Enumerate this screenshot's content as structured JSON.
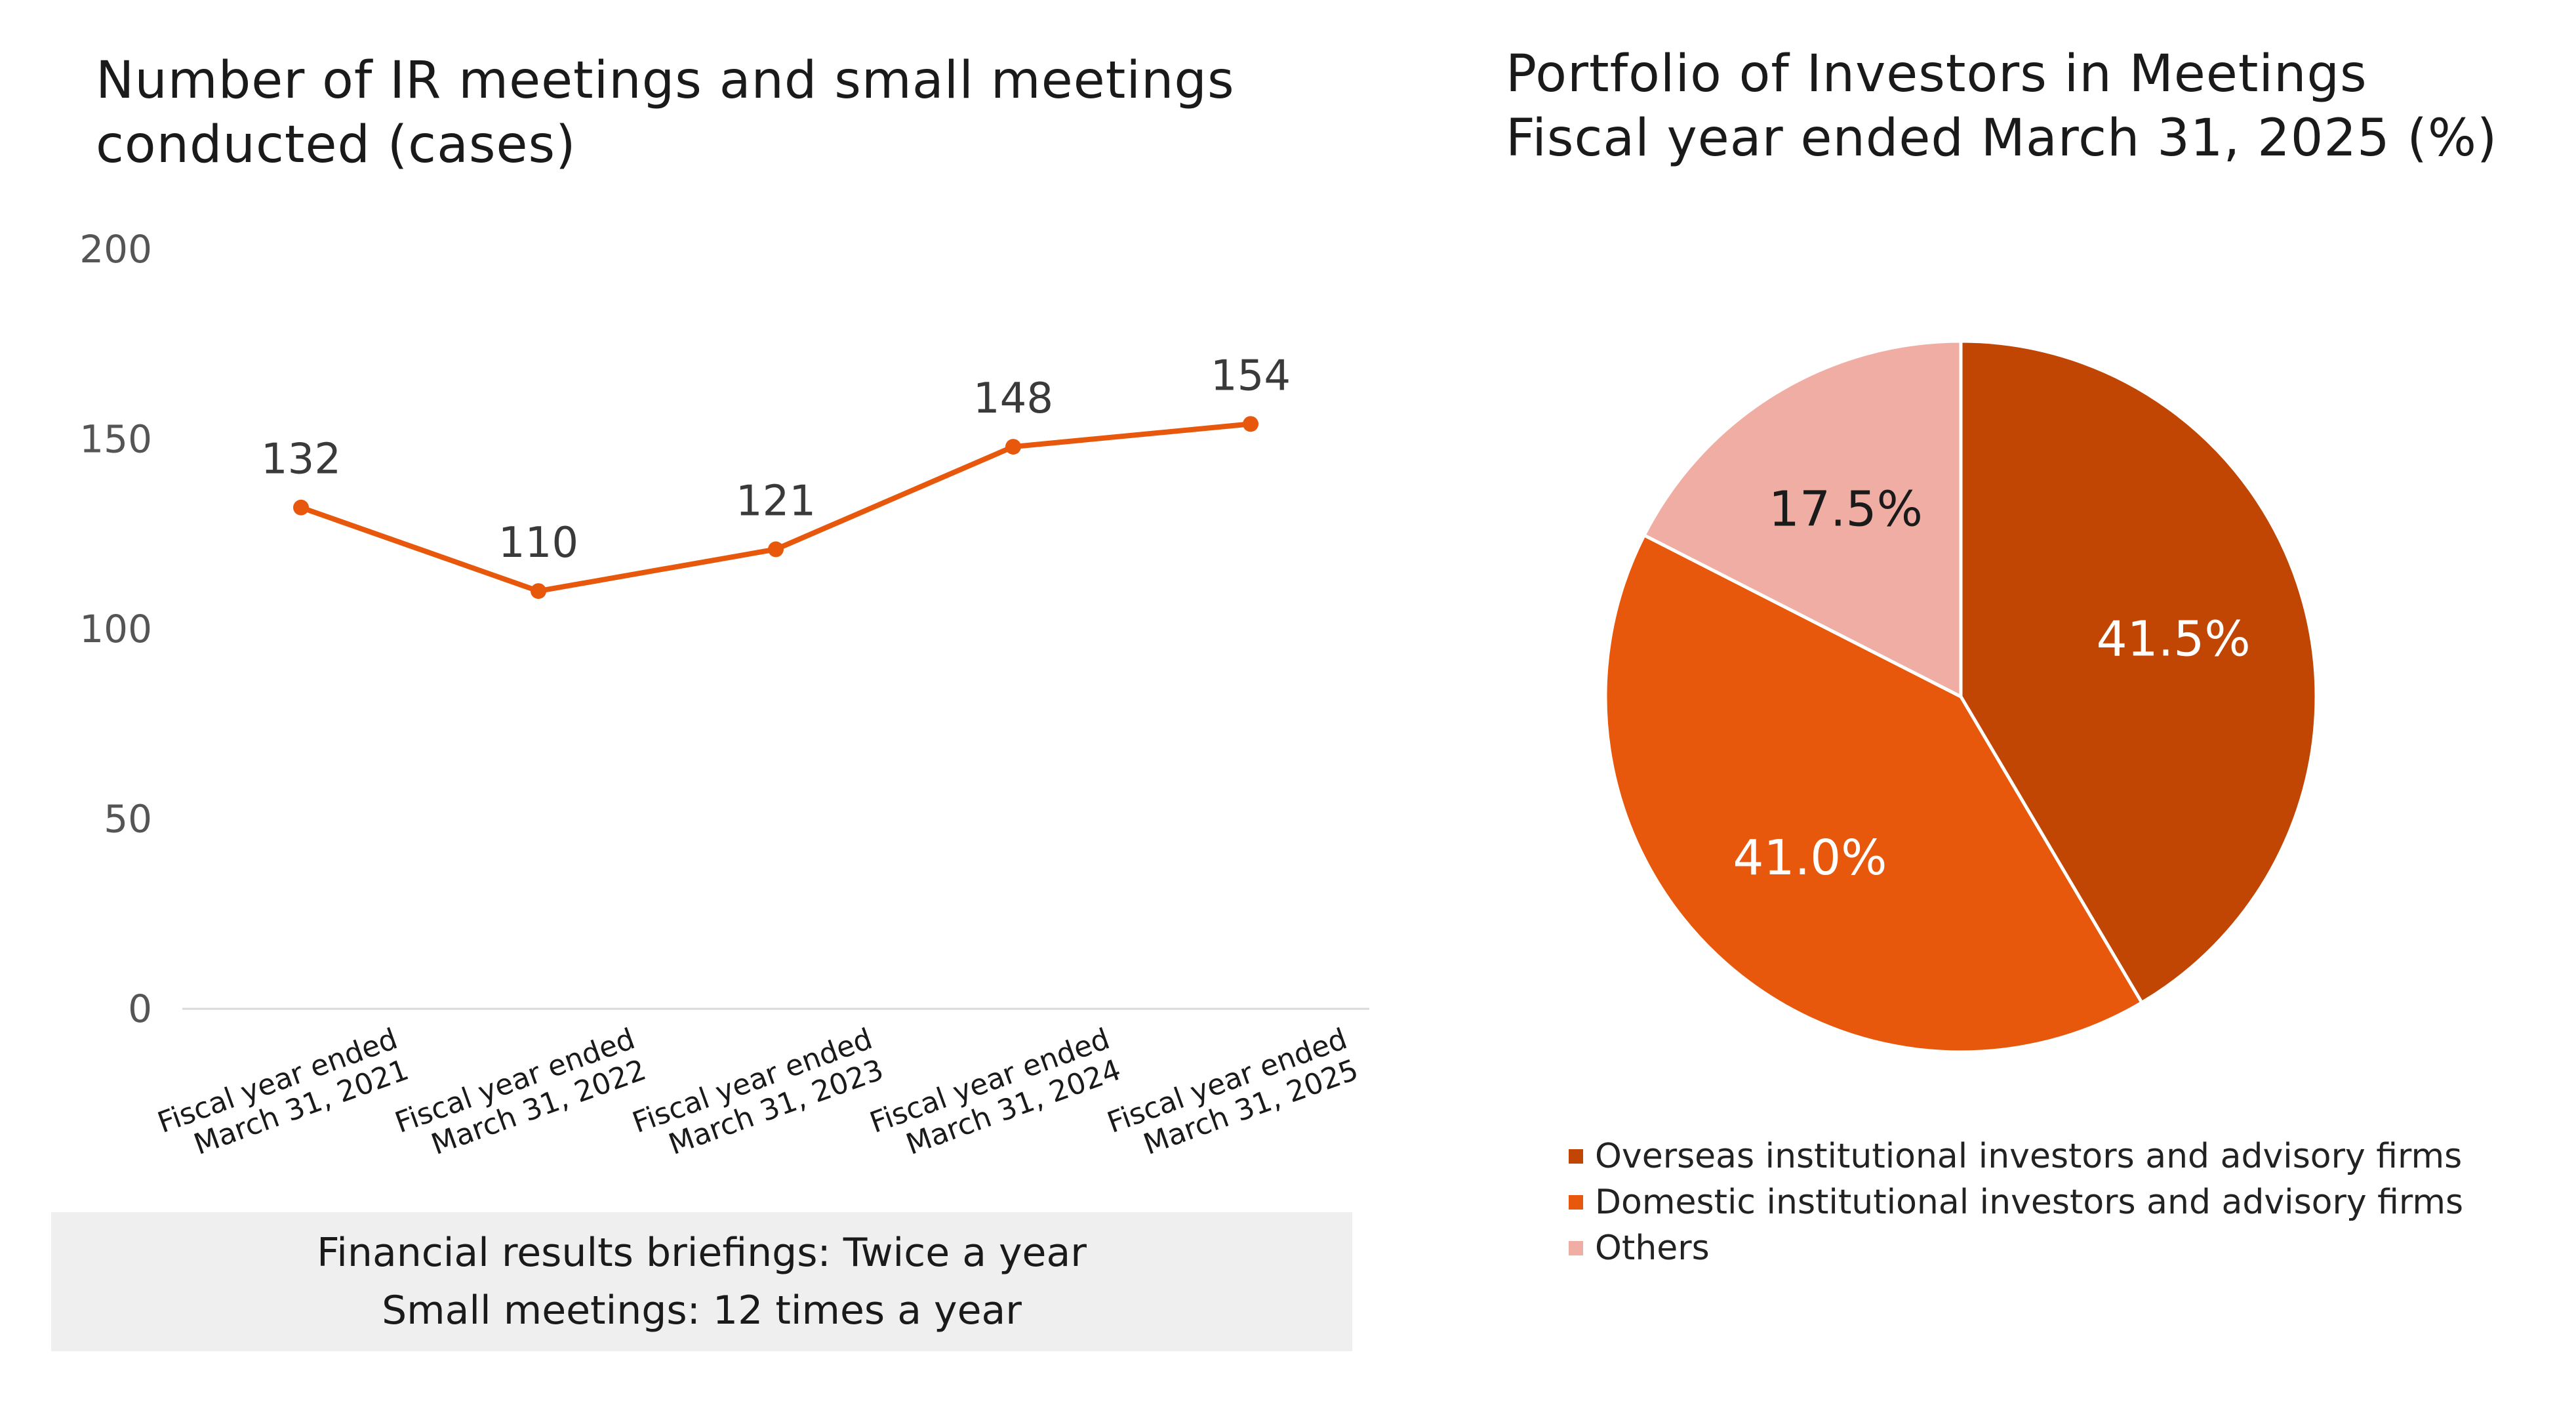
{
  "chart_data": [
    {
      "type": "line",
      "title": "Number of IR meetings and small meetings conducted (cases)",
      "categories": [
        "Fiscal year ended March 31, 2021",
        "Fiscal year ended March 31, 2022",
        "Fiscal year ended March 31, 2023",
        "Fiscal year ended March 31, 2024",
        "Fiscal year ended March 31, 2025"
      ],
      "values": [
        132,
        110,
        121,
        148,
        154
      ],
      "ylim": [
        0,
        200
      ],
      "yticks": [
        "0",
        "50",
        "100",
        "150",
        "200"
      ],
      "grid": false,
      "color": "#e8580c"
    },
    {
      "type": "pie",
      "title": "Portfolio of Investors in Meetings Fiscal year ended March 31, 2025 (%)",
      "slices": [
        {
          "name": "Overseas institutional investors and advisory firms",
          "value": 41.5,
          "label": "41.5%",
          "color": "#c14503",
          "label_color": "#ffffff"
        },
        {
          "name": "Domestic institutional investors and advisory firms",
          "value": 41.0,
          "label": "41.0%",
          "color": "#e8580c",
          "label_color": "#ffffff"
        },
        {
          "name": "Others",
          "value": 17.5,
          "label": "17.5%",
          "color": "#f0ada3",
          "label_color": "#1a1a1a"
        }
      ],
      "legend": "bottom"
    }
  ],
  "left_title_lines": [
    "Number of IR meetings and small meetings",
    "conducted (cases)"
  ],
  "right_title_lines": [
    "Portfolio of Investors in Meetings",
    "Fiscal year ended March 31, 2025 (%)"
  ],
  "note": {
    "line1": "Financial results briefings: Twice a year",
    "line2": "Small meetings: 12 times a year"
  }
}
